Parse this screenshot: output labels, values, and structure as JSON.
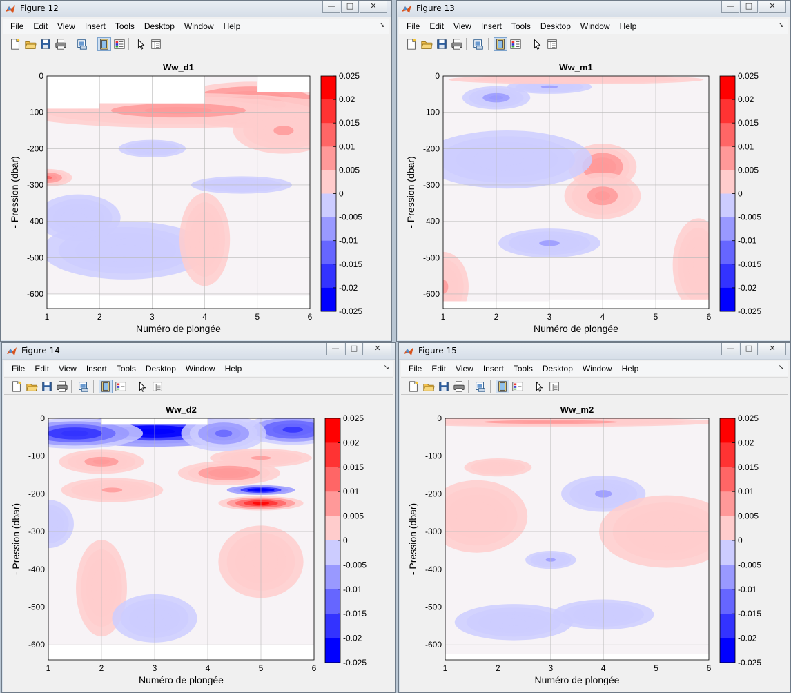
{
  "desktop": {
    "background": "#b9c6d3"
  },
  "menu": [
    "File",
    "Edit",
    "View",
    "Insert",
    "Tools",
    "Desktop",
    "Window",
    "Help"
  ],
  "window_buttons": {
    "minimize": "—",
    "maximize": "□",
    "close": "✕"
  },
  "toolbar_icons": [
    "new-figure-icon",
    "open-file-icon",
    "save-icon",
    "print-icon",
    "print-preview-icon",
    "dock-figure-icon",
    "plot-tools-icon",
    "edit-plot-arrow-icon",
    "property-editor-icon"
  ],
  "colors": {
    "positive": "#ff0000",
    "negative": "#0000ff",
    "zero": "#ffffff"
  },
  "windows": [
    {
      "title": "Figure 12"
    },
    {
      "title": "Figure 13"
    },
    {
      "title": "Figure 14"
    },
    {
      "title": "Figure 15"
    }
  ],
  "chart_data": [
    {
      "type": "heatmap",
      "title": "Ww_d1",
      "xlabel": "Numéro de plongée",
      "ylabel": "- Pression (dbar)",
      "x": [
        1,
        2,
        3,
        4,
        5,
        6
      ],
      "xlim": [
        1,
        6
      ],
      "ylim": [
        -640,
        0
      ],
      "yticks": [
        0,
        -100,
        -200,
        -300,
        -400,
        -500,
        -600
      ],
      "xticks": [
        1,
        2,
        3,
        4,
        5,
        6
      ],
      "colorbar": {
        "ticks": [
          "0.025",
          "0.02",
          "0.015",
          "0.01",
          "0.005",
          "0",
          "-0.005",
          "-0.01",
          "-0.015",
          "-0.02",
          "-0.025"
        ],
        "clim": [
          -0.025,
          0.025
        ]
      },
      "grid": true,
      "blobs": [
        {
          "x": 4.9,
          "y": -80,
          "value": 0.016,
          "sx": 1.0,
          "sy": 40
        },
        {
          "x": 3.5,
          "y": -95,
          "value": 0.008,
          "sx": 2.0,
          "sy": 30
        },
        {
          "x": 1.0,
          "y": -280,
          "value": 0.012,
          "sx": 0.3,
          "sy": 15
        },
        {
          "x": 3.0,
          "y": -200,
          "value": -0.005,
          "sx": 0.4,
          "sy": 15
        },
        {
          "x": 4.7,
          "y": -300,
          "value": -0.005,
          "sx": 0.6,
          "sy": 15
        },
        {
          "x": 1.6,
          "y": -390,
          "value": -0.005,
          "sx": 0.5,
          "sy": 40
        },
        {
          "x": 5.5,
          "y": -150,
          "value": 0.006,
          "sx": 0.6,
          "sy": 40
        },
        {
          "x": 2.5,
          "y": -480,
          "value": -0.003,
          "sx": 1.0,
          "sy": 50
        },
        {
          "x": 4.0,
          "y": -450,
          "value": 0.003,
          "sx": 0.3,
          "sy": 80
        }
      ],
      "blank_regions": [
        {
          "x0": 1,
          "x1": 2,
          "y0": -90,
          "y1": 0
        },
        {
          "x0": 2,
          "x1": 4,
          "y0": -75,
          "y1": 0
        },
        {
          "x0": 5,
          "x1": 6,
          "y0": -45,
          "y1": 0
        },
        {
          "x0": 1,
          "x1": 2,
          "y0": -640,
          "y1": -600
        },
        {
          "x0": 2,
          "x1": 6,
          "y0": -640,
          "y1": -605
        }
      ]
    },
    {
      "type": "heatmap",
      "title": "Ww_m1",
      "xlabel": "Numéro de plongée",
      "ylabel": "- Pression (dbar)",
      "x": [
        1,
        2,
        3,
        4,
        5,
        6
      ],
      "xlim": [
        1,
        6
      ],
      "ylim": [
        -640,
        0
      ],
      "yticks": [
        0,
        -100,
        -200,
        -300,
        -400,
        -500,
        -600
      ],
      "xticks": [
        1,
        2,
        3,
        4,
        5,
        6
      ],
      "colorbar": {
        "ticks": [
          "0.025",
          "0.02",
          "0.015",
          "0.01",
          "0.005",
          "0",
          "-0.005",
          "-0.01",
          "-0.015",
          "-0.02",
          "-0.025"
        ],
        "clim": [
          -0.025,
          0.025
        ]
      },
      "grid": true,
      "blobs": [
        {
          "x": 4.0,
          "y": -250,
          "value": 0.01,
          "sx": 0.4,
          "sy": 40
        },
        {
          "x": 4.0,
          "y": -330,
          "value": 0.008,
          "sx": 0.45,
          "sy": 40
        },
        {
          "x": 2.0,
          "y": -60,
          "value": -0.008,
          "sx": 0.4,
          "sy": 20
        },
        {
          "x": 3.0,
          "y": -30,
          "value": -0.006,
          "sx": 0.5,
          "sy": 12
        },
        {
          "x": 3.5,
          "y": -10,
          "value": 0.005,
          "sx": 1.5,
          "sy": 8
        },
        {
          "x": 3.0,
          "y": -460,
          "value": -0.006,
          "sx": 0.6,
          "sy": 25
        },
        {
          "x": 2.2,
          "y": -230,
          "value": -0.003,
          "sx": 1.0,
          "sy": 50
        },
        {
          "x": 1.0,
          "y": -580,
          "value": 0.006,
          "sx": 0.3,
          "sy": 60
        },
        {
          "x": 5.8,
          "y": -520,
          "value": 0.004,
          "sx": 0.3,
          "sy": 80
        }
      ],
      "blank_regions": [
        {
          "x0": 1,
          "x1": 3,
          "y0": -640,
          "y1": -620
        },
        {
          "x0": 3,
          "x1": 6,
          "y0": -640,
          "y1": -615
        }
      ]
    },
    {
      "type": "heatmap",
      "title": "Ww_d2",
      "xlabel": "Numéro de plongée",
      "ylabel": "- Pression (dbar)",
      "x": [
        1,
        2,
        3,
        4,
        5,
        6
      ],
      "xlim": [
        1,
        6
      ],
      "ylim": [
        -640,
        0
      ],
      "yticks": [
        0,
        -100,
        -200,
        -300,
        -400,
        -500,
        -600
      ],
      "xticks": [
        1,
        2,
        3,
        4,
        5,
        6
      ],
      "colorbar": {
        "ticks": [
          "0.025",
          "0.02",
          "0.015",
          "0.01",
          "0.005",
          "0",
          "-0.005",
          "-0.01",
          "-0.015",
          "-0.02",
          "-0.025"
        ],
        "clim": [
          -0.025,
          0.025
        ]
      },
      "grid": true,
      "blobs": [
        {
          "x": 3.0,
          "y": -35,
          "value": -0.025,
          "sx": 1.2,
          "sy": 25
        },
        {
          "x": 1.5,
          "y": -40,
          "value": -0.02,
          "sx": 0.8,
          "sy": 25
        },
        {
          "x": 5.6,
          "y": -30,
          "value": -0.018,
          "sx": 0.6,
          "sy": 25
        },
        {
          "x": 4.3,
          "y": -40,
          "value": -0.012,
          "sx": 0.5,
          "sy": 30
        },
        {
          "x": 5.0,
          "y": -190,
          "value": -0.025,
          "sx": 0.4,
          "sy": 8
        },
        {
          "x": 5.0,
          "y": -225,
          "value": 0.022,
          "sx": 0.5,
          "sy": 12
        },
        {
          "x": 4.4,
          "y": -145,
          "value": 0.01,
          "sx": 0.6,
          "sy": 20
        },
        {
          "x": 2.0,
          "y": -115,
          "value": 0.008,
          "sx": 0.5,
          "sy": 20
        },
        {
          "x": 5.0,
          "y": -105,
          "value": 0.006,
          "sx": 0.6,
          "sy": 15
        },
        {
          "x": 2.2,
          "y": -190,
          "value": 0.006,
          "sx": 0.6,
          "sy": 20
        },
        {
          "x": 2.0,
          "y": -450,
          "value": 0.005,
          "sx": 0.3,
          "sy": 80
        },
        {
          "x": 1.0,
          "y": -280,
          "value": -0.004,
          "sx": 0.3,
          "sy": 40
        },
        {
          "x": 5.0,
          "y": -380,
          "value": 0.004,
          "sx": 0.5,
          "sy": 60
        },
        {
          "x": 3.0,
          "y": -530,
          "value": -0.003,
          "sx": 0.5,
          "sy": 40
        }
      ],
      "blank_regions": [
        {
          "x0": 2,
          "x1": 4,
          "y0": -17,
          "y1": 0
        },
        {
          "x0": 1,
          "x1": 6,
          "y0": -640,
          "y1": -600
        }
      ]
    },
    {
      "type": "heatmap",
      "title": "Ww_m2",
      "xlabel": "Numéro de plongée",
      "ylabel": "- Pression (dbar)",
      "x": [
        1,
        2,
        3,
        4,
        5,
        6
      ],
      "xlim": [
        1,
        6
      ],
      "ylim": [
        -640,
        0
      ],
      "yticks": [
        0,
        -100,
        -200,
        -300,
        -400,
        -500,
        -600
      ],
      "xticks": [
        1,
        2,
        3,
        4,
        5,
        6
      ],
      "colorbar": {
        "ticks": [
          "0.025",
          "0.02",
          "0.015",
          "0.01",
          "0.005",
          "0",
          "-0.005",
          "-0.01",
          "-0.015",
          "-0.02",
          "-0.025"
        ],
        "clim": [
          -0.025,
          0.025
        ]
      },
      "grid": true,
      "blobs": [
        {
          "x": 3.0,
          "y": -10,
          "value": 0.008,
          "sx": 2.0,
          "sy": 8
        },
        {
          "x": 4.0,
          "y": -200,
          "value": -0.006,
          "sx": 0.5,
          "sy": 30
        },
        {
          "x": 3.0,
          "y": -375,
          "value": -0.006,
          "sx": 0.3,
          "sy": 15
        },
        {
          "x": 1.6,
          "y": -260,
          "value": 0.004,
          "sx": 0.6,
          "sy": 60
        },
        {
          "x": 2.0,
          "y": -130,
          "value": 0.004,
          "sx": 0.4,
          "sy": 15
        },
        {
          "x": 5.2,
          "y": -300,
          "value": 0.003,
          "sx": 0.8,
          "sy": 60
        },
        {
          "x": 2.3,
          "y": -540,
          "value": -0.004,
          "sx": 0.7,
          "sy": 30
        },
        {
          "x": 4.0,
          "y": -520,
          "value": -0.003,
          "sx": 0.6,
          "sy": 25
        }
      ],
      "blank_regions": [
        {
          "x0": 1,
          "x1": 6,
          "y0": -640,
          "y1": -625
        }
      ]
    }
  ]
}
